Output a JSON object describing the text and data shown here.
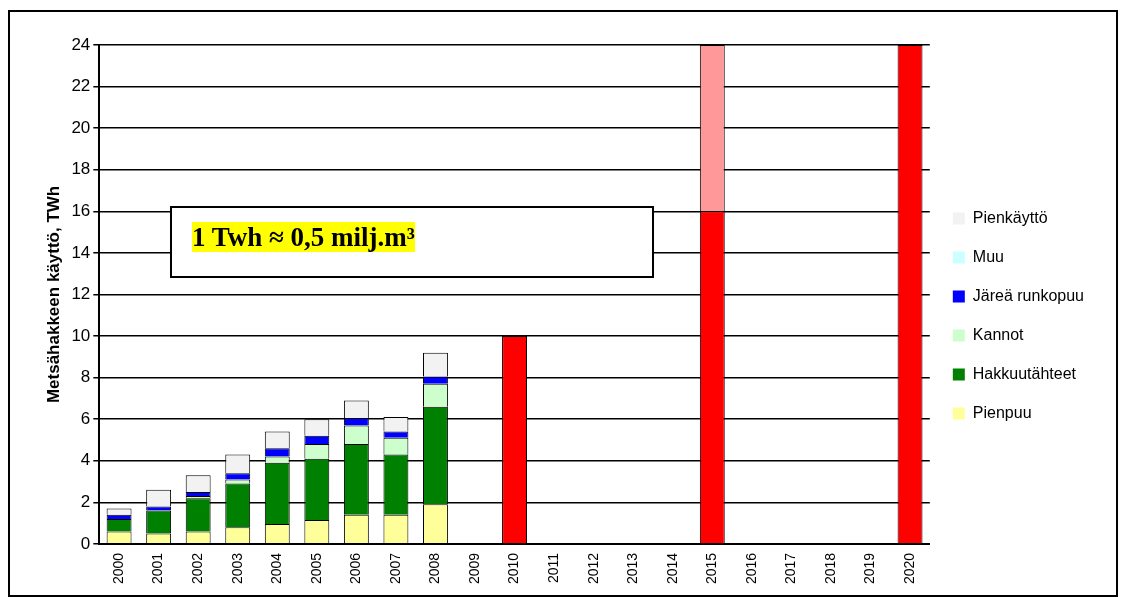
{
  "chart_data": {
    "type": "bar",
    "stacked": true,
    "ylabel": "Metsähakkeen käyttö, TWh",
    "categories": [
      "2000",
      "2001",
      "2002",
      "2003",
      "2004",
      "2005",
      "2006",
      "2007",
      "2008",
      "2009",
      "2010",
      "2011",
      "2012",
      "2013",
      "2014",
      "2015",
      "2016",
      "2017",
      "2018",
      "2019",
      "2020"
    ],
    "series": [
      {
        "name": "Pienpuu",
        "color": "#ffff99",
        "values": [
          0.6,
          0.5,
          0.6,
          0.8,
          0.95,
          1.15,
          1.4,
          1.4,
          1.9,
          null,
          null,
          null,
          null,
          null,
          null,
          null,
          null,
          null,
          null,
          null,
          null
        ]
      },
      {
        "name": "Hakkuutähteet",
        "color": "#008000",
        "values": [
          0.6,
          1.1,
          1.6,
          2.1,
          2.95,
          2.95,
          3.4,
          2.9,
          4.7,
          null,
          null,
          null,
          null,
          null,
          null,
          null,
          null,
          null,
          null,
          null,
          null
        ]
      },
      {
        "name": "Kannot",
        "color": "#ccffcc",
        "values": [
          null,
          null,
          0.1,
          0.2,
          0.3,
          0.7,
          0.9,
          0.8,
          1.1,
          null,
          null,
          null,
          null,
          null,
          null,
          null,
          null,
          null,
          null,
          null,
          null
        ]
      },
      {
        "name": "Järeä runkopuu",
        "color": "#0000ff",
        "values": [
          0.2,
          0.2,
          0.2,
          0.3,
          0.4,
          0.4,
          0.35,
          0.3,
          0.35,
          null,
          null,
          null,
          null,
          null,
          null,
          null,
          null,
          null,
          null,
          null,
          null
        ]
      },
      {
        "name": "Muu",
        "color": "#ccffff",
        "values": [
          0,
          0,
          0,
          0,
          0,
          0,
          0,
          0,
          0,
          null,
          null,
          null,
          null,
          null,
          null,
          null,
          null,
          null,
          null,
          null,
          null
        ]
      },
      {
        "name": "Pienkäyttö",
        "color": "#f2f2f2",
        "values": [
          0.3,
          0.8,
          0.8,
          0.9,
          0.8,
          0.8,
          0.85,
          0.7,
          1.15,
          null,
          null,
          null,
          null,
          null,
          null,
          null,
          null,
          null,
          null,
          null,
          null
        ]
      },
      {
        "color": "#ff0000",
        "values": [
          null,
          null,
          null,
          null,
          null,
          null,
          null,
          null,
          null,
          null,
          10,
          null,
          null,
          null,
          null,
          16,
          null,
          null,
          null,
          null,
          24
        ]
      },
      {
        "color": "#ff9999",
        "values": [
          null,
          null,
          null,
          null,
          null,
          null,
          null,
          null,
          null,
          null,
          null,
          null,
          null,
          null,
          null,
          8,
          null,
          null,
          null,
          null,
          null
        ]
      }
    ],
    "ylim": [
      0,
      24
    ],
    "yticks": [
      0,
      2,
      4,
      6,
      8,
      10,
      12,
      14,
      16,
      18,
      20,
      22,
      24
    ],
    "grid": "y",
    "legend": "right",
    "annotations": [
      "1 Twh ≈ 0,5 milj.m³"
    ]
  }
}
